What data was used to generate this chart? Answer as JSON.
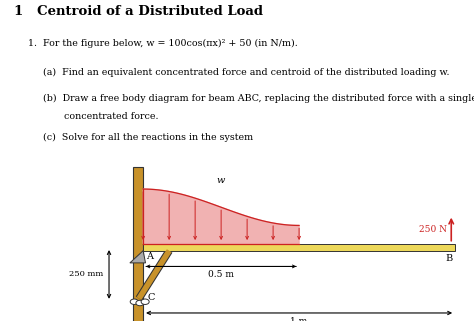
{
  "title": "1   Centroid of a Distributed Load",
  "line1": "1.  For the figure below, w = 100cos(πx)² + 50 (in N/m).",
  "line2a": "(a)  Find an equivalent concentrated force and centroid of the distributed loading w.",
  "line2b": "(b)  Draw a free body diagram for beam ABC, replacing the distributed force with a single",
  "line2b2": "       concentrated force.",
  "line2c": "(c)  Solve for all the reactions in the system",
  "beam_color": "#EDD85A",
  "wall_color": "#C8922A",
  "load_fill_color": "#F0AAAA",
  "load_line_color": "#CC2222",
  "arrow_250_color": "#CC2222",
  "label_A": "A",
  "label_B": "B",
  "label_C": "C",
  "label_w": "w",
  "label_250N": "250 N",
  "label_250mm": "250 mm",
  "label_05m": "0.5 m",
  "label_1m": "1 m",
  "bg_color": "#ffffff"
}
